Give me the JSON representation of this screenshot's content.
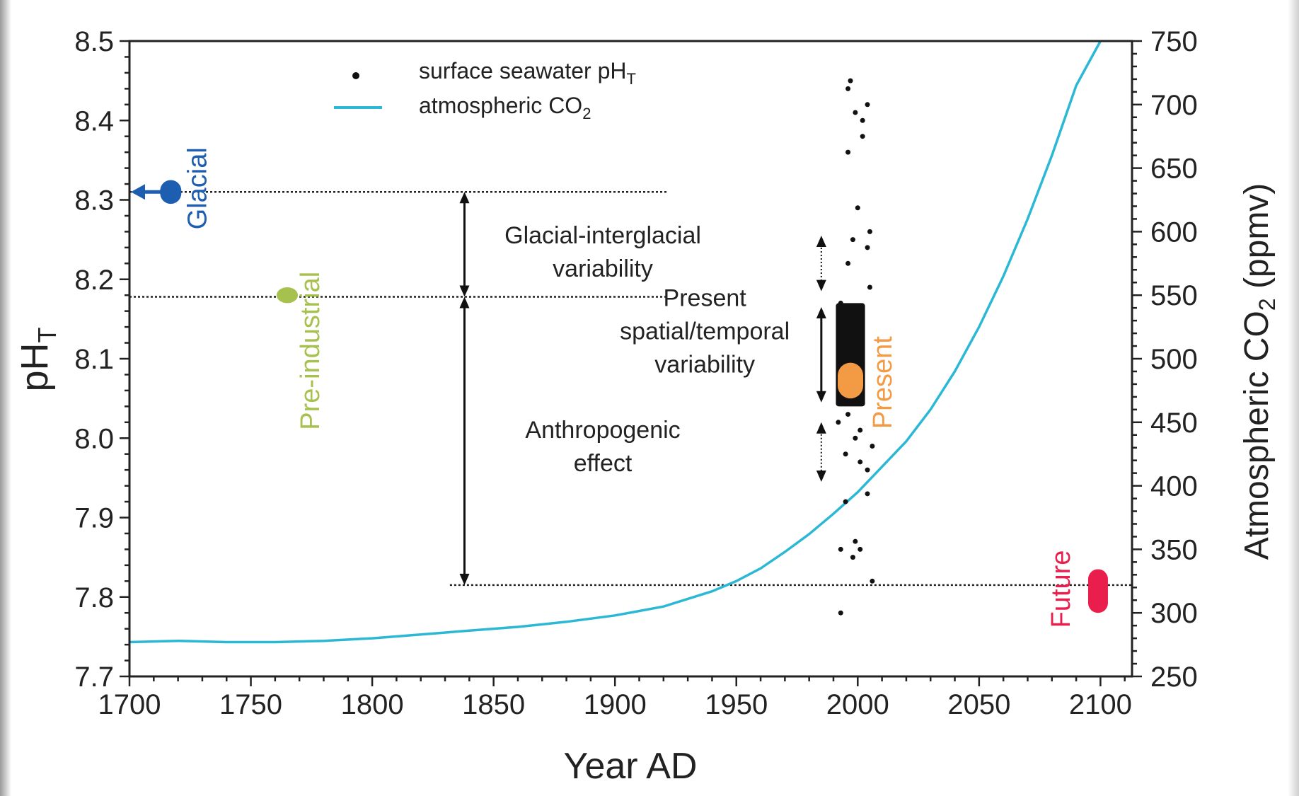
{
  "chart_data": {
    "type": "line",
    "xlabel": "Year AD",
    "ylabel_left_main": "pH",
    "ylabel_left_sub": "T",
    "ylabel_right_pre": "Atmospheric CO",
    "ylabel_right_sub": "2",
    "ylabel_right_post": " (ppmv)",
    "xlim": [
      1700,
      2113
    ],
    "ylim_left": [
      7.7,
      8.5
    ],
    "ylim_right": [
      250,
      750
    ],
    "x_ticks": [
      "1700",
      "1750",
      "1800",
      "1850",
      "1900",
      "1950",
      "2000",
      "2050",
      "2100"
    ],
    "y_ticks_left": [
      "7.7",
      "7.8",
      "7.9",
      "8.0",
      "8.1",
      "8.2",
      "8.3",
      "8.4",
      "8.5"
    ],
    "y_ticks_right": [
      "250",
      "300",
      "350",
      "400",
      "450",
      "500",
      "550",
      "600",
      "650",
      "700",
      "750"
    ],
    "legend": {
      "position": "top-center",
      "items": [
        {
          "kind": "point",
          "label_main": "surface seawater pH",
          "label_sub": "T",
          "color": "#111111"
        },
        {
          "kind": "line",
          "label_main": "atmospheric CO",
          "label_sub": "2",
          "color": "#2bb8d4"
        }
      ]
    },
    "co2_series": {
      "color": "#2bb8d4",
      "x": [
        1700,
        1720,
        1740,
        1760,
        1780,
        1800,
        1820,
        1840,
        1860,
        1880,
        1900,
        1920,
        1940,
        1950,
        1960,
        1970,
        1980,
        1990,
        2000,
        2010,
        2020,
        2030,
        2040,
        2050,
        2060,
        2070,
        2080,
        2090,
        2100
      ],
      "y": [
        277,
        278,
        277,
        277,
        278,
        280,
        283,
        286,
        289,
        293,
        298,
        305,
        317,
        325,
        335,
        348,
        362,
        378,
        395,
        415,
        435,
        460,
        490,
        525,
        565,
        610,
        660,
        715,
        750
      ]
    },
    "ph_points": {
      "color": "#111111",
      "x": [
        1993,
        2006,
        1998,
        1993,
        2001,
        1999,
        1995,
        2004,
        2004,
        2001,
        1995,
        2006,
        1999,
        2001,
        1992,
        1996,
        1993,
        2005,
        1996,
        2004,
        1998,
        2005,
        2000,
        1996,
        2002,
        1999,
        2004,
        1996,
        1997,
        2002
      ],
      "y": [
        7.78,
        7.82,
        7.85,
        7.86,
        7.86,
        7.87,
        7.92,
        7.93,
        7.96,
        7.97,
        7.98,
        7.99,
        8.0,
        8.01,
        8.02,
        8.03,
        8.17,
        8.19,
        8.22,
        8.24,
        8.25,
        8.26,
        8.29,
        8.36,
        8.4,
        8.41,
        8.42,
        8.44,
        8.45,
        8.38
      ]
    },
    "ph_dense_band": {
      "x_from": 1991,
      "x_to": 2003,
      "y_from": 8.04,
      "y_to": 8.17,
      "color": "#111111"
    },
    "periods": [
      {
        "label": "Glacial",
        "year": 1717,
        "ph_from": 8.295,
        "ph_to": 8.325,
        "color": "#1e5eb1"
      },
      {
        "label": "Pre-industrial",
        "year": 1765,
        "ph_from": 8.17,
        "ph_to": 8.19,
        "color": "#a6c14e"
      },
      {
        "label": "Present",
        "year": 1997,
        "ph_from": 8.05,
        "ph_to": 8.095,
        "color": "#f39a45"
      },
      {
        "label": "Future",
        "year": 2099,
        "ph_from": 7.78,
        "ph_to": 7.835,
        "color": "#e91e4d"
      }
    ],
    "reference_lines": [
      {
        "ph": 8.31,
        "x_from": 1700,
        "x_to": 1922
      },
      {
        "ph": 8.178,
        "x_from": 1700,
        "x_to": 1922
      },
      {
        "ph": 7.815,
        "x_from": 1832,
        "x_to": 2113
      }
    ],
    "annotations": [
      {
        "lines": [
          "Glacial-interglacial",
          "variability"
        ],
        "year": 1895,
        "ph": 8.235
      },
      {
        "lines": [
          "Anthropogenic",
          "effect"
        ],
        "year": 1895,
        "ph": 7.99
      },
      {
        "lines": [
          "Present",
          "spatial/temporal",
          "variability"
        ],
        "year": 1937,
        "ph": 8.135
      }
    ],
    "arrows": [
      {
        "year": 1838,
        "ph_from": 8.31,
        "ph_to": 8.178,
        "style": "solid"
      },
      {
        "year": 1838,
        "ph_from": 8.178,
        "ph_to": 7.815,
        "style": "solid"
      },
      {
        "year": 1985,
        "ph_from": 8.165,
        "ph_to": 8.045,
        "style": "solid"
      },
      {
        "year": 1985,
        "ph_from": 8.255,
        "ph_to": 8.185,
        "style": "dotted"
      },
      {
        "year": 1985,
        "ph_from": 8.02,
        "ph_to": 7.945,
        "style": "dotted"
      }
    ]
  }
}
